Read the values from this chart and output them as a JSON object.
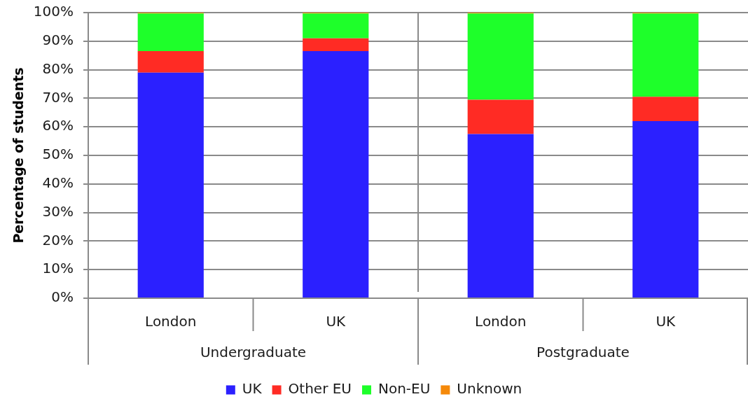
{
  "chart_data": {
    "type": "bar",
    "ylabel": "Percentage of students",
    "categories": [
      "London",
      "UK",
      "London",
      "UK"
    ],
    "annotations": [
      "Undergraduate",
      "Postgraduate"
    ],
    "stacked": true,
    "series": [
      {
        "name": "UK",
        "color": "#2b20ff",
        "values": [
          79,
          86.5,
          57.5,
          62
        ]
      },
      {
        "name": "Other EU",
        "color": "#ff2b24",
        "values": [
          7.5,
          4.5,
          12,
          8.5
        ]
      },
      {
        "name": "Non-EU",
        "color": "#1eff2a",
        "values": [
          13.2,
          8.7,
          30.2,
          29.2
        ]
      },
      {
        "name": "Unknown",
        "color": "#f5890a",
        "values": [
          0.3,
          0.3,
          0.3,
          0.3
        ]
      }
    ],
    "ylim": [
      0,
      100
    ],
    "yticks": [
      {
        "value": 0,
        "label": "0%"
      },
      {
        "value": 10,
        "label": "10%"
      },
      {
        "value": 20,
        "label": "20%"
      },
      {
        "value": 30,
        "label": "30%"
      },
      {
        "value": 40,
        "label": "40%"
      },
      {
        "value": 50,
        "label": "50%"
      },
      {
        "value": 60,
        "label": "60%"
      },
      {
        "value": 70,
        "label": "70%"
      },
      {
        "value": 80,
        "label": "80%"
      },
      {
        "value": 90,
        "label": "90%"
      },
      {
        "value": 100,
        "label": "100%"
      }
    ],
    "grid": "y",
    "legend": "bottom"
  }
}
